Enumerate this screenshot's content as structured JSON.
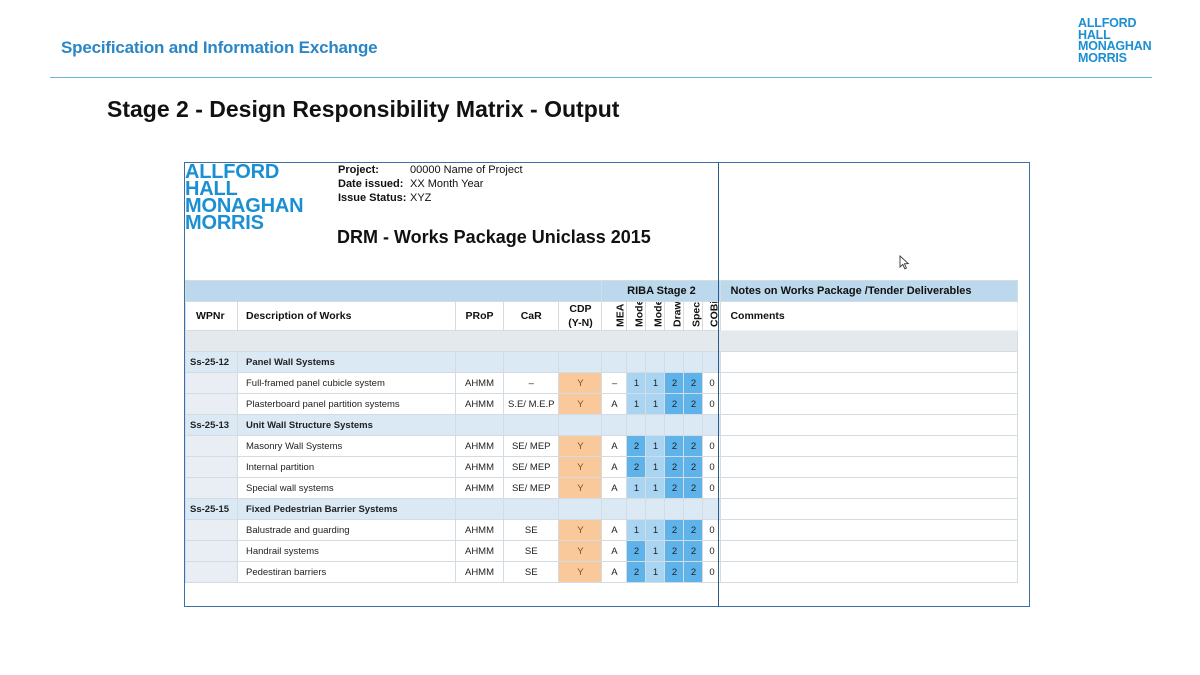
{
  "slide": {
    "title": "Specification and Information Exchange",
    "logo_lines": [
      "ALLFORD",
      "HALL",
      "MONAGHAN",
      "MORRIS"
    ],
    "heading": "Stage 2 - Design Responsibility Matrix - Output"
  },
  "document": {
    "logo_lines": [
      "ALLFORD",
      "HALL",
      "MONAGHAN",
      "MORRIS"
    ],
    "meta": {
      "project_label": "Project:",
      "project_value": "00000 Name of Project",
      "date_label": "Date issued:",
      "date_value": "XX Month Year",
      "status_label": "Issue Status:",
      "status_value": "XYZ"
    },
    "title": "DRM - Works Package Uniclass 2015",
    "band": {
      "riba": "RIBA Stage 2",
      "notes": "Notes on Works Package /Tender Deliverables"
    },
    "headers": {
      "wpnr": "WPNr",
      "description": "Description of Works",
      "prop": "PRoP",
      "car": "CaR",
      "cdp": "CDP (Y-N)",
      "mea": "MEA",
      "model_lod": "Model LOD",
      "model_loi": "Model LOI",
      "drawing_lod": "Drawing LOD",
      "spec_loi": "Spec LOI",
      "cobie_drop": "COBie Drop",
      "comments": "Comments"
    },
    "rows": [
      {
        "type": "group",
        "wpnr": "Ss-25-12",
        "desc": "Panel Wall Systems"
      },
      {
        "type": "item",
        "desc": "Full-framed panel cubicle system",
        "prop": "AHMM",
        "car": "–",
        "cdp": "Y",
        "mea": "–",
        "mlod": "1",
        "mloi": "1",
        "dlod": "2",
        "sloi": "2",
        "drop": "0"
      },
      {
        "type": "item",
        "desc": "Plasterboard panel partition systems",
        "prop": "AHMM",
        "car": "S.E/ M.E.P",
        "cdp": "Y",
        "mea": "A",
        "mlod": "1",
        "mloi": "1",
        "dlod": "2",
        "sloi": "2",
        "drop": "0"
      },
      {
        "type": "group",
        "wpnr": "Ss-25-13",
        "desc": "Unit Wall Structure Systems"
      },
      {
        "type": "item",
        "desc": "Masonry Wall Systems",
        "prop": "AHMM",
        "car": "SE/ MEP",
        "cdp": "Y",
        "mea": "A",
        "mlod": "2",
        "mloi": "1",
        "dlod": "2",
        "sloi": "2",
        "drop": "0"
      },
      {
        "type": "item",
        "desc": "Internal partition",
        "prop": "AHMM",
        "car": "SE/ MEP",
        "cdp": "Y",
        "mea": "A",
        "mlod": "2",
        "mloi": "1",
        "dlod": "2",
        "sloi": "2",
        "drop": "0"
      },
      {
        "type": "item",
        "desc": "Special wall systems",
        "prop": "AHMM",
        "car": "SE/ MEP",
        "cdp": "Y",
        "mea": "A",
        "mlod": "1",
        "mloi": "1",
        "dlod": "2",
        "sloi": "2",
        "drop": "0"
      },
      {
        "type": "group",
        "wpnr": "Ss-25-15",
        "desc": "Fixed Pedestrian Barrier Systems"
      },
      {
        "type": "item",
        "desc": "Balustrade and guarding",
        "prop": "AHMM",
        "car": "SE",
        "cdp": "Y",
        "mea": "A",
        "mlod": "1",
        "mloi": "1",
        "dlod": "2",
        "sloi": "2",
        "drop": "0"
      },
      {
        "type": "item",
        "desc": "Handrail systems",
        "prop": "AHMM",
        "car": "SE",
        "cdp": "Y",
        "mea": "A",
        "mlod": "2",
        "mloi": "1",
        "dlod": "2",
        "sloi": "2",
        "drop": "0"
      },
      {
        "type": "item",
        "desc": "Pedestiran barriers",
        "prop": "AHMM",
        "car": "SE",
        "cdp": "Y",
        "mea": "A",
        "mlod": "2",
        "mloi": "1",
        "dlod": "2",
        "sloi": "2",
        "drop": "0"
      }
    ]
  },
  "colors": {
    "accent": "#2a86c6",
    "logo": "#1a8fd2",
    "band": "#bcd8ec",
    "cdp": "#f9c99b",
    "lod_light": "#a9d4f2",
    "lod_dark": "#5eb3ea"
  },
  "icons": {
    "cursor": "mouse-pointer-icon"
  }
}
